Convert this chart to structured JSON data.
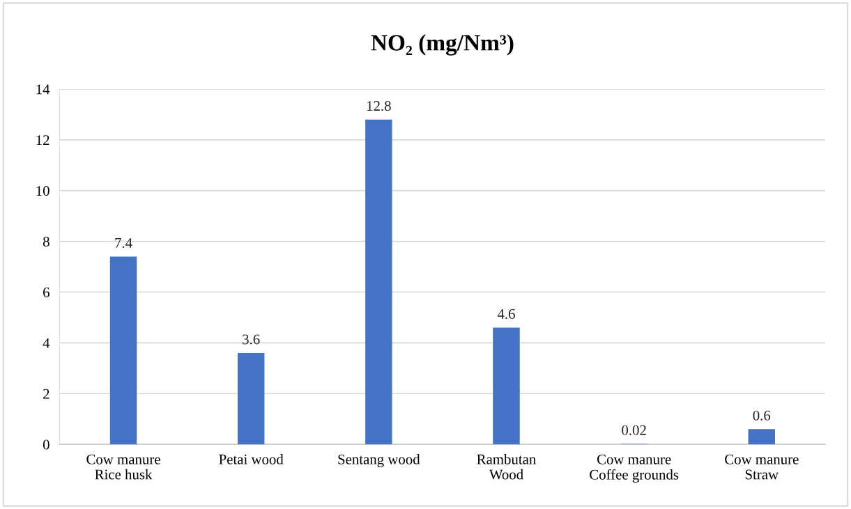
{
  "chart_data": {
    "type": "bar",
    "title": "NO₂ (mg/Nm³)",
    "categories": [
      "Cow manure\nRice husk",
      "Petai wood",
      "Sentang wood",
      "Rambutan\nWood",
      "Cow manure\nCoffee grounds",
      "Cow manure\nStraw"
    ],
    "values": [
      7.4,
      3.6,
      12.8,
      4.6,
      0.02,
      0.6
    ],
    "color": "#4472c4",
    "ylim": [
      0,
      14
    ],
    "yticks": [
      0,
      2,
      4,
      6,
      8,
      10,
      12,
      14
    ],
    "grid": "y",
    "data_labels": true,
    "legend": false
  }
}
